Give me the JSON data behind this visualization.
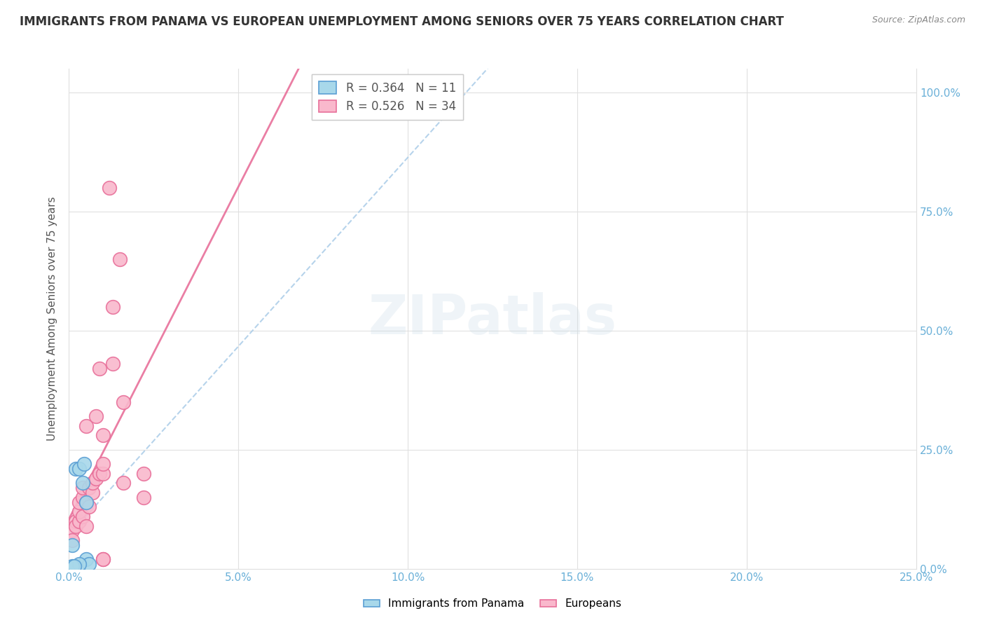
{
  "title": "IMMIGRANTS FROM PANAMA VS EUROPEAN UNEMPLOYMENT AMONG SENIORS OVER 75 YEARS CORRELATION CHART",
  "source": "Source: ZipAtlas.com",
  "ylabel": "Unemployment Among Seniors over 75 years",
  "legend_panama": "Immigrants from Panama",
  "legend_europeans": "Europeans",
  "R_panama": 0.364,
  "N_panama": 11,
  "R_europeans": 0.526,
  "N_europeans": 34,
  "color_panama_fill": "#a8d8ea",
  "color_panama_edge": "#5b9fd4",
  "color_europeans_fill": "#f9b8cc",
  "color_europeans_edge": "#e8709a",
  "color_trend_panama": "#aacce8",
  "color_trend_europeans": "#e8709a",
  "panama_x": [
    0.001,
    0.002,
    0.003,
    0.004,
    0.0045,
    0.005,
    0.005,
    0.006,
    0.003,
    0.001,
    0.0015
  ],
  "panama_y": [
    0.05,
    0.21,
    0.21,
    0.18,
    0.22,
    0.14,
    0.02,
    0.01,
    0.01,
    0.005,
    0.005
  ],
  "europeans_x": [
    0.001,
    0.001,
    0.002,
    0.002,
    0.003,
    0.003,
    0.003,
    0.004,
    0.004,
    0.004,
    0.005,
    0.005,
    0.005,
    0.006,
    0.006,
    0.007,
    0.007,
    0.008,
    0.008,
    0.009,
    0.009,
    0.01,
    0.01,
    0.01,
    0.012,
    0.013,
    0.015,
    0.016,
    0.016,
    0.022,
    0.01,
    0.01,
    0.013,
    0.022
  ],
  "europeans_y": [
    0.08,
    0.06,
    0.1,
    0.09,
    0.1,
    0.12,
    0.14,
    0.11,
    0.15,
    0.17,
    0.09,
    0.14,
    0.3,
    0.13,
    0.17,
    0.16,
    0.18,
    0.19,
    0.32,
    0.2,
    0.42,
    0.28,
    0.2,
    0.22,
    0.8,
    0.55,
    0.65,
    0.35,
    0.18,
    0.2,
    0.02,
    0.02,
    0.43,
    0.15
  ],
  "watermark": "ZIPatlas",
  "xmin": 0.0,
  "xmax": 0.25,
  "ymin": 0.0,
  "ymax": 1.05,
  "x_ticks": [
    0.0,
    0.05,
    0.1,
    0.15,
    0.2,
    0.25
  ],
  "y_ticks": [
    0.0,
    0.25,
    0.5,
    0.75,
    1.0
  ],
  "grid_color": "#e0e0e0",
  "tick_color": "#6ab0d8",
  "title_fontsize": 12,
  "axis_fontsize": 11,
  "legend_fontsize": 12
}
